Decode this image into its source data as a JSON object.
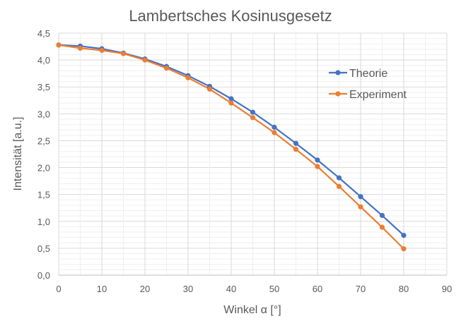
{
  "chart_data": {
    "type": "line",
    "title": "Lambertsches Kosinusgesetz",
    "xlabel": "Winkel α [°]",
    "ylabel": "Intensität [a.u.]",
    "xlim": [
      0,
      90
    ],
    "ylim": [
      0,
      4.5
    ],
    "xticks": [
      "0",
      "10",
      "20",
      "30",
      "40",
      "50",
      "60",
      "70",
      "80",
      "90"
    ],
    "yticks": [
      "0,0",
      "0,5",
      "1,0",
      "1,5",
      "2,0",
      "2,5",
      "3,0",
      "3,5",
      "4,0",
      "4,5"
    ],
    "grid": true,
    "legend_position": "right",
    "x": [
      0,
      5,
      10,
      15,
      20,
      25,
      30,
      35,
      40,
      45,
      50,
      55,
      60,
      65,
      70,
      75,
      80
    ],
    "series": [
      {
        "name": "Theorie",
        "color": "#4472C4",
        "values": [
          4.28,
          4.26,
          4.21,
          4.13,
          4.02,
          3.88,
          3.71,
          3.51,
          3.28,
          3.03,
          2.75,
          2.45,
          2.14,
          1.81,
          1.46,
          1.11,
          0.74
        ]
      },
      {
        "name": "Experiment",
        "color": "#ED7D31",
        "values": [
          4.28,
          4.22,
          4.18,
          4.12,
          4.0,
          3.85,
          3.67,
          3.46,
          3.2,
          2.93,
          2.65,
          2.34,
          2.02,
          1.65,
          1.27,
          0.89,
          0.49
        ]
      }
    ]
  }
}
